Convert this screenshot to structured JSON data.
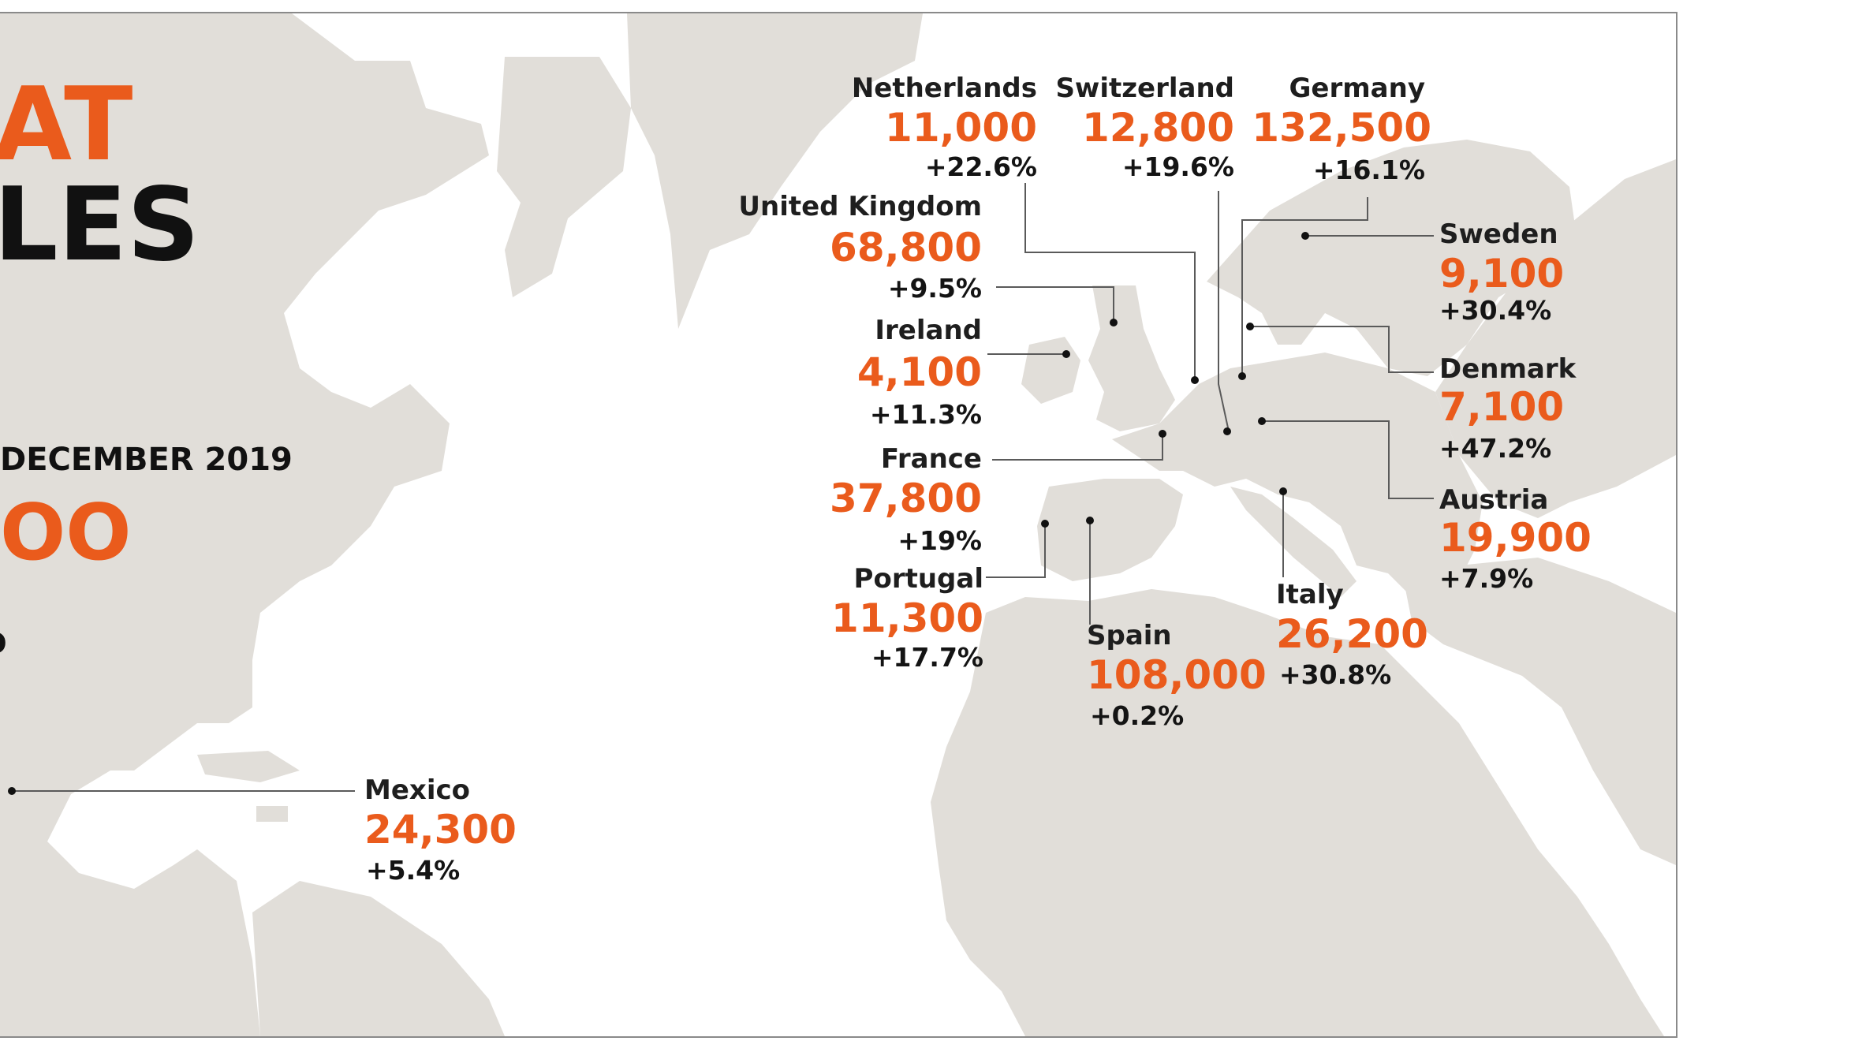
{
  "header": {
    "title_line1": "AT",
    "title_line2": "LES",
    "period": "DECEMBER 2019",
    "total": "OO",
    "fragment": "O"
  },
  "colors": {
    "accent": "#ea5b1c",
    "land": "#e1ded9",
    "text": "#1e1e1e"
  },
  "countries": [
    {
      "name": "Netherlands",
      "value": "11,000",
      "change": "+22.6%"
    },
    {
      "name": "Switzerland",
      "value": "12,800",
      "change": "+19.6%"
    },
    {
      "name": "Germany",
      "value": "132,500",
      "change": "+16.1%"
    },
    {
      "name": "United Kingdom",
      "value": "68,800",
      "change": "+9.5%"
    },
    {
      "name": "Sweden",
      "value": "9,100",
      "change": "+30.4%"
    },
    {
      "name": "Ireland",
      "value": "4,100",
      "change": "+11.3%"
    },
    {
      "name": "Denmark",
      "value": "7,100",
      "change": "+47.2%"
    },
    {
      "name": "France",
      "value": "37,800",
      "change": "+19%"
    },
    {
      "name": "Austria",
      "value": "19,900",
      "change": "+7.9%"
    },
    {
      "name": "Portugal",
      "value": "11,300",
      "change": "+17.7%"
    },
    {
      "name": "Italy",
      "value": "26,200",
      "change": "+30.8%"
    },
    {
      "name": "Spain",
      "value": "108,000",
      "change": "+0.2%"
    },
    {
      "name": "Mexico",
      "value": "24,300",
      "change": "+5.4%"
    }
  ]
}
